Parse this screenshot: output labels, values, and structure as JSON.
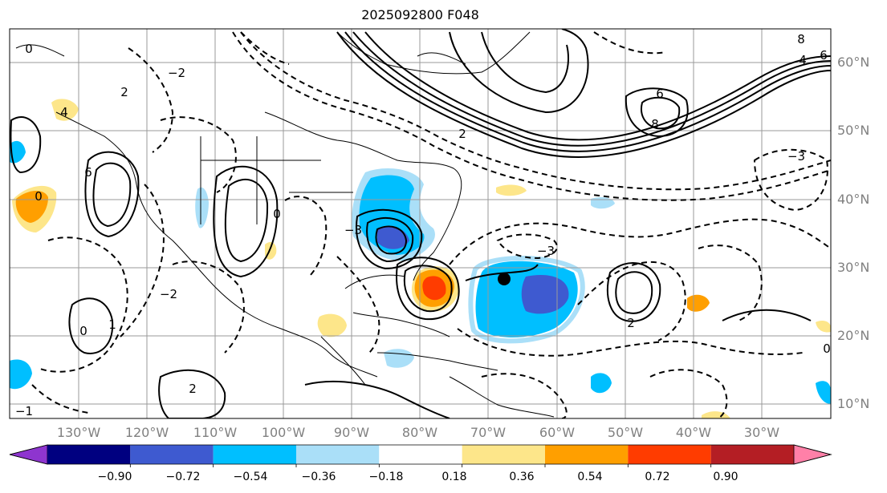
{
  "title": "2025092800 F048",
  "latitude_labels": [
    "60°N",
    "50°N",
    "40°N",
    "30°N",
    "20°N",
    "10°N"
  ],
  "longitude_labels": [
    "130°W",
    "120°W",
    "110°W",
    "100°W",
    "90°W",
    "80°W",
    "70°W",
    "60°W",
    "50°W",
    "40°W",
    "30°W"
  ],
  "colorbar": {
    "ticks": [
      "−0.90",
      "−0.72",
      "−0.54",
      "−0.36",
      "−0.18",
      "0.18",
      "0.36",
      "0.54",
      "0.72",
      "0.90"
    ],
    "colors": [
      "#8e35cf",
      "#000080",
      "#3e5ad0",
      "#00bfff",
      "#aadff8",
      "#ffffff",
      "#fde68a",
      "#ff9f00",
      "#ff3c00",
      "#b41e24",
      "#ff80a8"
    ]
  },
  "contour_labels": [
    "0",
    "2",
    "4",
    "6",
    "8",
    "−2",
    "−3",
    "2",
    "6",
    "8",
    "4",
    "6",
    "−3",
    "0",
    "0",
    "2",
    "1",
    "0",
    "−1",
    "2",
    "0",
    "−2",
    "−3"
  ],
  "storm_marker": "storm-center",
  "colors": {
    "land_line": "#000000",
    "grid": "#9a9a9a",
    "label_gray": "#808080"
  }
}
